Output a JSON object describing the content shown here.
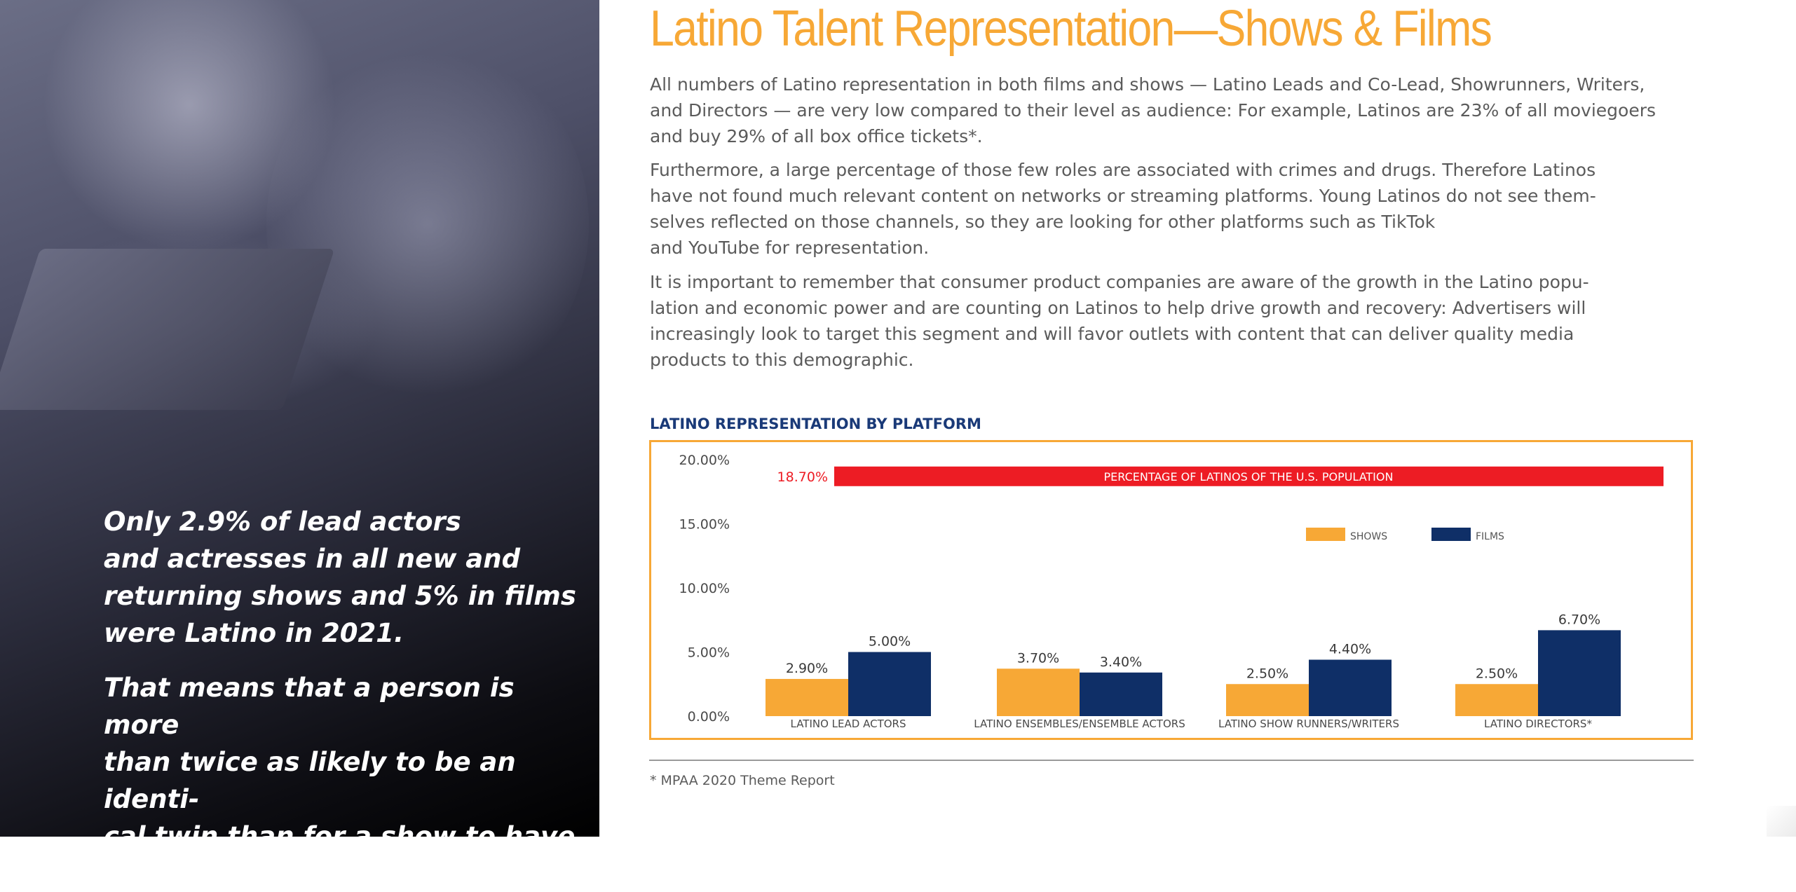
{
  "title": "Latino Talent Representation—Shows & Films",
  "paragraphs": [
    "All numbers of Latino representation in both films and shows — Latino Leads and Co-Lead, Showrunners, Writers,\nand Directors —  are very low compared to their level as audience: For example, Latinos are 23% of all moviegoers\nand buy 29% of all box office tickets*.",
    "Furthermore, a large percentage of those few roles are associated with crimes and drugs. Therefore Latinos\nhave not found much relevant content on networks or streaming platforms. Young Latinos do not see them-\nselves reflected on those channels, so they are looking for other platforms such as TikTok\nand YouTube for representation.",
    "It is important to remember that consumer product companies are aware of the growth in the Latino popu-\nlation and economic power and are counting on Latinos to help drive growth and recovery: Advertisers will\nincreasingly look to target this segment and will favor outlets with content that can deliver quality media\nproducts to this demographic."
  ],
  "quotes": [
    "Only 2.9% of lead actors\nand actresses in all new and\nreturning shows and 5% in films\nwere Latino in 2021.",
    "That means that a person is more\nthan twice as likely to be an identi-\ncal twin than for a show to have\na Latino lead actor."
  ],
  "footnote": "* MPAA 2020 Theme Report",
  "chart_data": {
    "type": "bar",
    "title": "LATINO REPRESENTATION BY PLATFORM",
    "categories": [
      "LATINO LEAD ACTORS",
      "LATINO ENSEMBLES/ENSEMBLE ACTORS",
      "LATINO SHOW RUNNERS/WRITERS",
      "LATINO DIRECTORS*"
    ],
    "series": [
      {
        "name": "SHOWS",
        "values": [
          2.9,
          3.7,
          2.5,
          2.5
        ],
        "labels": [
          "2.90%",
          "3.70%",
          "2.50%",
          "2.50%"
        ],
        "color": "#f7a836"
      },
      {
        "name": "FILMS",
        "values": [
          5.0,
          3.4,
          4.4,
          6.7
        ],
        "labels": [
          "5.00%",
          "3.40%",
          "4.40%",
          "6.70%"
        ],
        "color": "#0f2f67"
      }
    ],
    "ylim": [
      0,
      20
    ],
    "yticks": [
      0,
      5,
      10,
      15,
      20
    ],
    "ytick_labels": [
      "0.00%",
      "5.00%",
      "10.00%",
      "15.00%",
      "20.00%"
    ],
    "reference": {
      "value": 18.7,
      "value_label": "18.70%",
      "label": "PERCENTAGE OF LATINOS OF THE U.S. POPULATION",
      "color": "#ed1c24"
    },
    "legend_position": "top-right",
    "grid": false
  },
  "colors": {
    "title": "#f7a836",
    "chart_title": "#1a3a78",
    "frame": "#f7a836"
  }
}
